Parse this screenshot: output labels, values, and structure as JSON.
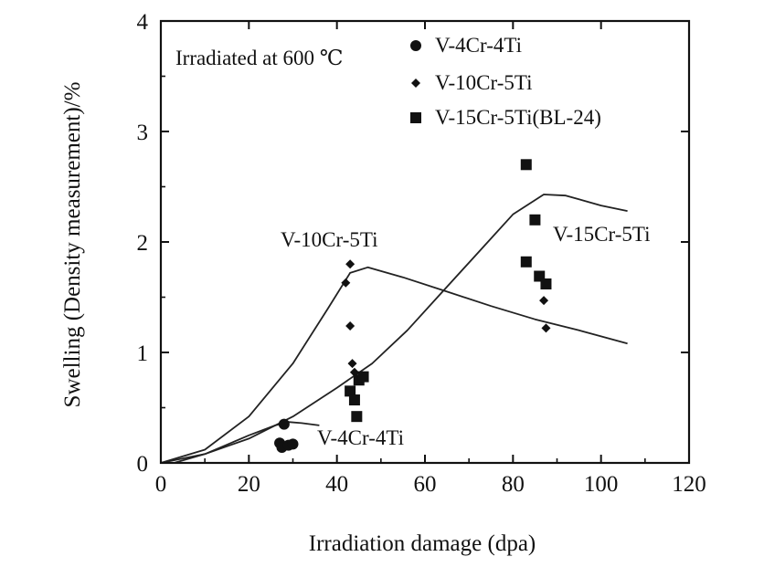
{
  "chart_data": {
    "type": "scatter",
    "title": "",
    "xlabel": "Irradiation damage (dpa)",
    "ylabel": "Swelling (Density measurement)/%",
    "xlim": [
      0,
      120
    ],
    "ylim": [
      0,
      4
    ],
    "xticks": [
      0,
      20,
      40,
      60,
      80,
      100,
      120
    ],
    "yticks": [
      0,
      1,
      2,
      3,
      4
    ],
    "grid": false,
    "legend": {
      "placement": "top-right"
    },
    "legend_title": "Irradiated at 600 ℃",
    "series": [
      {
        "name": "V-4Cr-4Ti",
        "marker": "circle",
        "points": [
          [
            27,
            0.18
          ],
          [
            27.5,
            0.14
          ],
          [
            28,
            0.35
          ],
          [
            29,
            0.16
          ],
          [
            30,
            0.17
          ]
        ]
      },
      {
        "name": "V-10Cr-5Ti",
        "marker": "diamond",
        "points": [
          [
            42,
            1.63
          ],
          [
            43,
            1.8
          ],
          [
            43,
            1.24
          ],
          [
            43.5,
            0.9
          ],
          [
            44,
            0.82
          ],
          [
            87,
            1.47
          ],
          [
            87.5,
            1.22
          ]
        ]
      },
      {
        "name": "V-15Cr-5Ti(BL-24)",
        "marker": "square",
        "points": [
          [
            43,
            0.65
          ],
          [
            44,
            0.57
          ],
          [
            44.5,
            0.42
          ],
          [
            45,
            0.75
          ],
          [
            46,
            0.78
          ],
          [
            83,
            2.7
          ],
          [
            83,
            1.82
          ],
          [
            85,
            2.2
          ],
          [
            86,
            1.69
          ],
          [
            87.5,
            1.62
          ]
        ]
      }
    ],
    "trend_lines": [
      {
        "label": "V-10Cr-5Ti",
        "points": [
          [
            0,
            0
          ],
          [
            10,
            0.12
          ],
          [
            20,
            0.42
          ],
          [
            30,
            0.9
          ],
          [
            38,
            1.4
          ],
          [
            43,
            1.72
          ],
          [
            47,
            1.77
          ],
          [
            55,
            1.68
          ],
          [
            65,
            1.55
          ],
          [
            75,
            1.42
          ],
          [
            85,
            1.3
          ],
          [
            95,
            1.2
          ],
          [
            106,
            1.08
          ]
        ]
      },
      {
        "label": "V-15Cr-5Ti",
        "points": [
          [
            0,
            0
          ],
          [
            10,
            0.08
          ],
          [
            20,
            0.22
          ],
          [
            30,
            0.42
          ],
          [
            40,
            0.68
          ],
          [
            48,
            0.9
          ],
          [
            56,
            1.2
          ],
          [
            64,
            1.55
          ],
          [
            72,
            1.9
          ],
          [
            80,
            2.25
          ],
          [
            87,
            2.43
          ],
          [
            92,
            2.42
          ],
          [
            100,
            2.33
          ],
          [
            106,
            2.28
          ]
        ]
      },
      {
        "label": "V-4Cr-4Ti",
        "points": [
          [
            3,
            0
          ],
          [
            10,
            0.08
          ],
          [
            20,
            0.25
          ],
          [
            26,
            0.34
          ],
          [
            29,
            0.37
          ],
          [
            32,
            0.36
          ],
          [
            36,
            0.34
          ]
        ]
      }
    ]
  }
}
